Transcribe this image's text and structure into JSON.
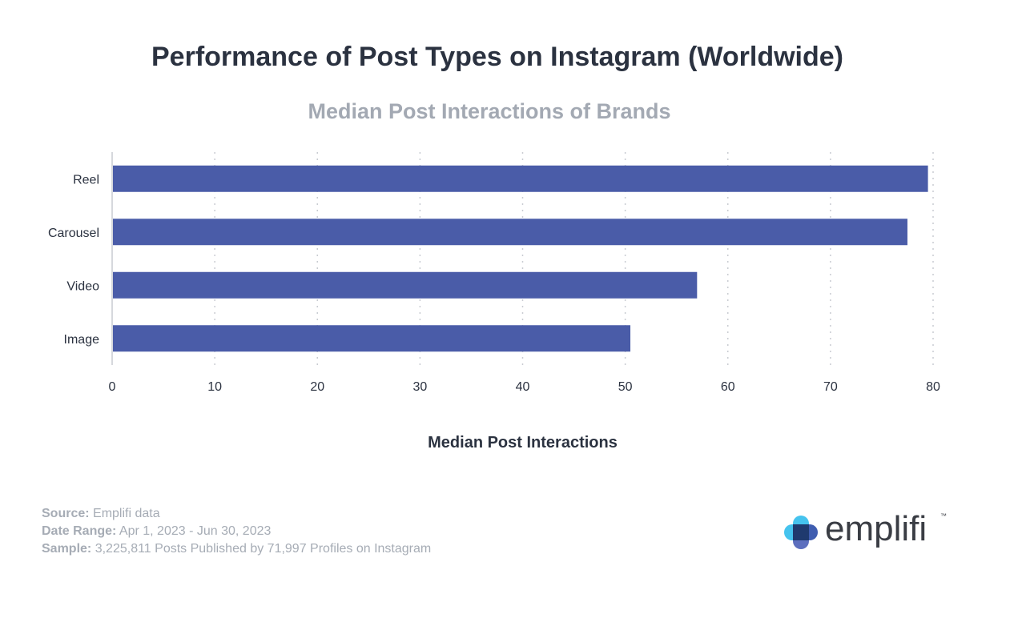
{
  "header": {
    "title": "Performance of Post Types on Instagram (Worldwide)",
    "subtitle": "Median Post Interactions of Brands"
  },
  "chart_data": {
    "type": "bar",
    "orientation": "horizontal",
    "title": "Performance of Post Types on Instagram (Worldwide)",
    "subtitle": "Median Post Interactions of Brands",
    "categories": [
      "Reel",
      "Carousel",
      "Video",
      "Image"
    ],
    "values": [
      79.5,
      77.5,
      57,
      50.5
    ],
    "xlabel": "Median Post Interactions",
    "ylabel": "",
    "xlim": [
      0,
      80
    ],
    "x_ticks": [
      "0",
      "10",
      "20",
      "30",
      "40",
      "50",
      "60",
      "70",
      "80"
    ],
    "grid": "vertical dotted",
    "bar_color": "#4a5ca8"
  },
  "footer": {
    "source_label": "Source:",
    "source_value": "Emplifi data",
    "date_label": "Date Range:",
    "date_value": "Apr 1, 2023 - Jun 30, 2023",
    "sample_label": "Sample:",
    "sample_value": "3,225,811 Posts Published by 71,997 Profiles on Instagram"
  },
  "logo": {
    "wordmark": "emplifi",
    "trademark": "™",
    "icon": "emplifi-cross-icon",
    "colors": {
      "cyan": "#45c3ee",
      "navy": "#1f3a6e",
      "blue": "#3f5db0",
      "periwinkle": "#5d6fbe"
    }
  }
}
